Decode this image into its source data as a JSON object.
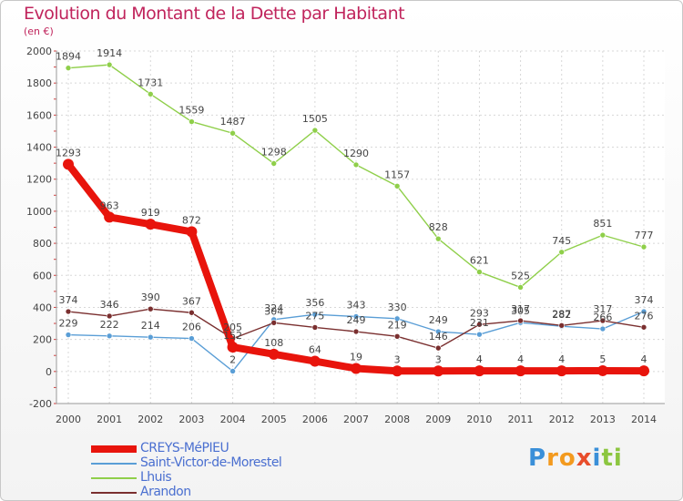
{
  "title": "Evolution du Montant de la Dette par Habitant",
  "unit": "(en €)",
  "brand": {
    "letters": [
      "P",
      "r",
      "o",
      "x",
      "i",
      "t",
      "i"
    ],
    "colors": [
      "#3a8fd8",
      "#f39a1e",
      "#f39a1e",
      "#e84d2b",
      "#3a8fd8",
      "#8cc640",
      "#8cc640"
    ]
  },
  "chart_data": {
    "type": "line",
    "x": [
      "2000",
      "2001",
      "2002",
      "2003",
      "2004",
      "2005",
      "2006",
      "2007",
      "2008",
      "2009",
      "2010",
      "2011",
      "2012",
      "2013",
      "2014"
    ],
    "ylim": [
      -200,
      2000
    ],
    "yticks": [
      "-200",
      "0",
      "200",
      "400",
      "600",
      "800",
      "1000",
      "1200",
      "1400",
      "1600",
      "1800",
      "2000"
    ],
    "grid": true,
    "legend_position": "bottom-left",
    "series": [
      {
        "name": "CREYS-MéPIEU",
        "color": "#e8140c",
        "values": [
          1293,
          963,
          919,
          872,
          152,
          108,
          64,
          19,
          3,
          3,
          4,
          4,
          4,
          5,
          4
        ],
        "labels": [
          "1293",
          "963",
          "919",
          "872",
          "152",
          "108",
          "64",
          "19",
          "3",
          "3",
          "4",
          "4",
          "4",
          "5",
          "4"
        ]
      },
      {
        "name": "Saint-Victor-de-Morestel",
        "color": "#5a9ed6",
        "values": [
          229,
          222,
          214,
          206,
          2,
          324,
          356,
          343,
          330,
          249,
          231,
          305,
          282,
          266,
          374
        ],
        "labels": [
          "229",
          "222",
          "214",
          "206",
          "2",
          "324",
          "356",
          "343",
          "330",
          "249",
          "231",
          "305",
          "282",
          "266",
          "374"
        ]
      },
      {
        "name": "Lhuis",
        "color": "#8fcf4a",
        "values": [
          1894,
          1914,
          1731,
          1559,
          1487,
          1298,
          1505,
          1290,
          1157,
          828,
          621,
          525,
          745,
          851,
          777
        ],
        "labels": [
          "1894",
          "1914",
          "1731",
          "1559",
          "1487",
          "1298",
          "1505",
          "1290",
          "1157",
          "828",
          "621",
          "525",
          "745",
          "851",
          "777"
        ]
      },
      {
        "name": "Arandon",
        "color": "#7a2f2f",
        "values": [
          374,
          346,
          390,
          367,
          205,
          304,
          275,
          249,
          219,
          146,
          293,
          317,
          287,
          317,
          276
        ],
        "labels": [
          "374",
          "346",
          "390",
          "367",
          "205",
          "304",
          "275",
          "249",
          "219",
          "146",
          "293",
          "317",
          "287",
          "317",
          "276"
        ]
      }
    ]
  }
}
